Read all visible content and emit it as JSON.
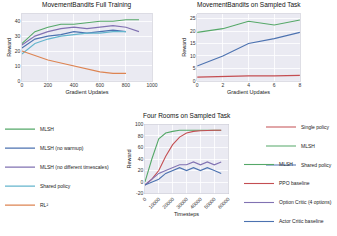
{
  "chart_data": [
    {
      "type": "line",
      "title": "MovementBandits Full Training",
      "x_label": "Gradient Updates",
      "y_label": "Reward",
      "x": [
        0,
        100,
        200,
        300,
        400,
        500,
        600,
        700,
        800,
        900,
        1000
      ],
      "series": [
        {
          "name": "MLSH",
          "color": "#55a868",
          "values": [
            25,
            33,
            36,
            38,
            38,
            39,
            40,
            40,
            41,
            41,
            null
          ]
        },
        {
          "name": "MLSH (no warmup)",
          "color": "#4c72b0",
          "values": [
            22,
            28,
            30,
            31,
            33,
            32,
            33,
            34,
            33,
            null,
            null
          ]
        },
        {
          "name": "MLSH (no different timescales)",
          "color": "#8172b2",
          "values": [
            24,
            30,
            33,
            35,
            36,
            35,
            36,
            37,
            36,
            33,
            null
          ]
        },
        {
          "name": "Shared policy",
          "color": "#64b5cd",
          "values": [
            18,
            25,
            28,
            30,
            31,
            32,
            32,
            33,
            33,
            null,
            null
          ]
        },
        {
          "name": "RL²",
          "color": "#dd8452",
          "values": [
            20,
            17,
            14,
            12,
            10,
            8,
            6,
            5,
            5,
            null,
            null
          ]
        }
      ],
      "xlim": [
        0,
        1000
      ],
      "ylim": [
        0,
        45
      ],
      "xticks": [
        0,
        200,
        400,
        600,
        800,
        1000
      ],
      "yticks": [
        0,
        10,
        20,
        30,
        40
      ],
      "grid": true
    },
    {
      "type": "line",
      "title": "MovementBandits on Sampled Task",
      "x_label": "Gradient Updates",
      "y_label": "Reward",
      "x": [
        0,
        2,
        4,
        6,
        8
      ],
      "series": [
        {
          "name": "Single policy",
          "color": "#c44e52",
          "values": [
            1.5,
            1.8,
            2,
            2,
            2.2
          ]
        },
        {
          "name": "MLSH",
          "color": "#55a868",
          "values": [
            19.5,
            21,
            24,
            22.5,
            24.5
          ]
        },
        {
          "name": "Shared policy",
          "color": "#4c72b0",
          "values": [
            6,
            10,
            15,
            17,
            19.5
          ]
        }
      ],
      "xlim": [
        0,
        8
      ],
      "ylim": [
        0,
        27
      ],
      "xticks": [
        0,
        2,
        4,
        6,
        8
      ],
      "yticks": [
        0,
        5,
        10,
        15,
        20,
        25
      ],
      "grid": true
    },
    {
      "type": "line",
      "title": "Four Rooms on Sampled Task",
      "x_label": "Timesteps",
      "y_label": "Reward",
      "x": [
        0,
        5000,
        10000,
        15000,
        20000,
        25000,
        30000,
        35000,
        40000,
        45000,
        50000,
        55000
      ],
      "series": [
        {
          "name": "MLSH",
          "color": "#55a868",
          "values": [
            0,
            40,
            75,
            85,
            88,
            90,
            90,
            90,
            90,
            90,
            90,
            90
          ]
        },
        {
          "name": "PPO baseline",
          "color": "#c44e52",
          "values": [
            -5,
            5,
            20,
            45,
            65,
            78,
            85,
            88,
            89,
            90,
            90,
            90
          ]
        },
        {
          "name": "Option Critic (4 options)",
          "color": "#8172b2",
          "values": [
            -5,
            5,
            15,
            20,
            25,
            30,
            30,
            35,
            30,
            35,
            30,
            35
          ]
        },
        {
          "name": "Actor Critic baseline",
          "color": "#4c72b0",
          "values": [
            -5,
            0,
            5,
            15,
            20,
            25,
            20,
            25,
            20,
            25,
            20,
            15
          ]
        }
      ],
      "xlim": [
        0,
        60000
      ],
      "ylim": [
        -20,
        100
      ],
      "xticks": [
        0,
        10000,
        20000,
        30000,
        40000,
        50000,
        60000
      ],
      "yticks": [
        -20,
        0,
        20,
        40,
        60,
        80,
        100
      ],
      "grid": true
    }
  ]
}
